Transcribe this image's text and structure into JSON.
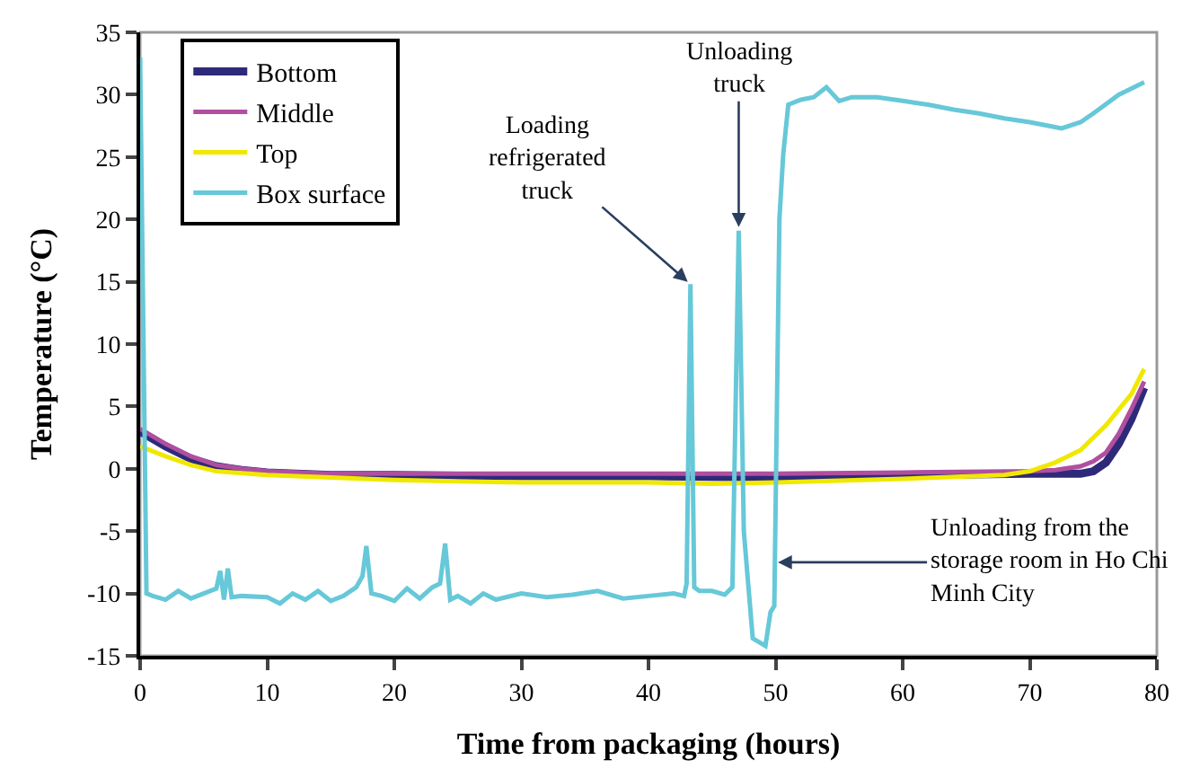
{
  "chart_data": {
    "type": "line",
    "xlabel": "Time from packaging (hours)",
    "ylabel": "Temperature (°C)",
    "xlim": [
      0,
      80
    ],
    "xticks": [
      0,
      10,
      20,
      30,
      40,
      50,
      60,
      70,
      80
    ],
    "ylim": [
      -15,
      35
    ],
    "yticks": [
      -15,
      -10,
      -5,
      0,
      5,
      10,
      15,
      20,
      25,
      30,
      35
    ],
    "grid": false,
    "legend": "top left",
    "marker": "none",
    "line_style": "solid",
    "series": [
      {
        "name": "Bottom",
        "color": "#2e2a7a",
        "x": [
          0,
          2,
          4,
          6,
          8,
          10,
          15,
          20,
          30,
          40,
          50,
          60,
          70,
          74,
          75,
          76,
          77,
          78,
          79
        ],
        "values": [
          3.0,
          1.8,
          0.8,
          0.2,
          -0.1,
          -0.3,
          -0.5,
          -0.5,
          -0.6,
          -0.6,
          -0.7,
          -0.5,
          -0.4,
          -0.4,
          -0.2,
          0.5,
          2,
          4,
          6.5
        ]
      },
      {
        "name": "Middle",
        "color": "#b04fa0",
        "x": [
          0,
          2,
          4,
          6,
          8,
          10,
          15,
          20,
          30,
          40,
          50,
          60,
          70,
          72,
          74,
          75,
          76,
          77,
          78,
          79
        ],
        "values": [
          3.2,
          2.0,
          1.0,
          0.3,
          0,
          -0.2,
          -0.4,
          -0.4,
          -0.4,
          -0.4,
          -0.4,
          -0.3,
          -0.2,
          -0.1,
          0.2,
          0.6,
          1.3,
          2.8,
          4.8,
          7.0
        ]
      },
      {
        "name": "Top",
        "color": "#f0e800",
        "x": [
          0,
          2,
          4,
          6,
          10,
          20,
          30,
          40,
          45,
          50,
          60,
          68,
          70,
          72,
          74,
          76,
          78,
          79
        ],
        "values": [
          1.8,
          1.0,
          0.3,
          -0.2,
          -0.5,
          -0.9,
          -1.1,
          -1.1,
          -1.2,
          -1.1,
          -0.8,
          -0.5,
          -0.2,
          0.5,
          1.5,
          3.5,
          6,
          8
        ]
      },
      {
        "name": "Box surface",
        "color": "#66c8d8",
        "x": [
          0,
          0.5,
          1,
          2,
          3,
          4,
          5,
          6,
          6.3,
          6.6,
          6.9,
          7.2,
          8,
          10,
          11,
          12,
          13,
          14,
          15,
          16,
          17,
          17.5,
          17.8,
          18.2,
          19,
          20,
          21,
          22,
          23,
          23.6,
          24,
          24.4,
          25,
          26,
          27,
          28,
          30,
          32,
          34,
          36,
          38,
          40,
          42,
          42.8,
          43,
          43.3,
          43.6,
          44,
          45,
          46,
          46.6,
          47.1,
          47.5,
          48.2,
          49.2,
          49.6,
          49.9,
          50.3,
          50.6,
          51,
          52,
          53,
          54,
          55,
          56,
          58,
          60,
          62,
          64,
          66,
          68,
          70,
          72,
          72.5,
          74,
          75,
          77,
          79
        ],
        "values": [
          33,
          -10,
          -10.2,
          -10.5,
          -9.8,
          -10.4,
          -10,
          -9.6,
          -8.2,
          -10.5,
          -8,
          -10.3,
          -10.2,
          -10.3,
          -10.8,
          -10,
          -10.5,
          -9.8,
          -10.6,
          -10.2,
          -9.5,
          -8.6,
          -6.2,
          -10,
          -10.2,
          -10.6,
          -9.6,
          -10.4,
          -9.5,
          -9.2,
          -6,
          -10.5,
          -10.2,
          -10.8,
          -10,
          -10.5,
          -10,
          -10.3,
          -10.1,
          -9.8,
          -10.4,
          -10.2,
          -10,
          -10.2,
          -9.2,
          14.8,
          -9.5,
          -9.8,
          -9.8,
          -10.1,
          -9.5,
          19.1,
          -5,
          -13.6,
          -14.2,
          -11.5,
          -11,
          20,
          25.2,
          29.2,
          29.6,
          29.8,
          30.6,
          29.5,
          29.8,
          29.8,
          29.5,
          29.2,
          28.8,
          28.5,
          28.1,
          27.8,
          27.4,
          27.3,
          27.8,
          28.5,
          30,
          31
        ]
      }
    ],
    "annotations": [
      {
        "text": "Loading\nrefrigerated\ntruck",
        "x": 43.3,
        "y": 14.8
      },
      {
        "text": "Unloading\ntruck",
        "x": 47.1,
        "y": 19.1
      },
      {
        "text": "Unloading from the\nstorage room in Ho Chi\nMinh City",
        "x": 49.9,
        "y": -7.5
      }
    ]
  }
}
